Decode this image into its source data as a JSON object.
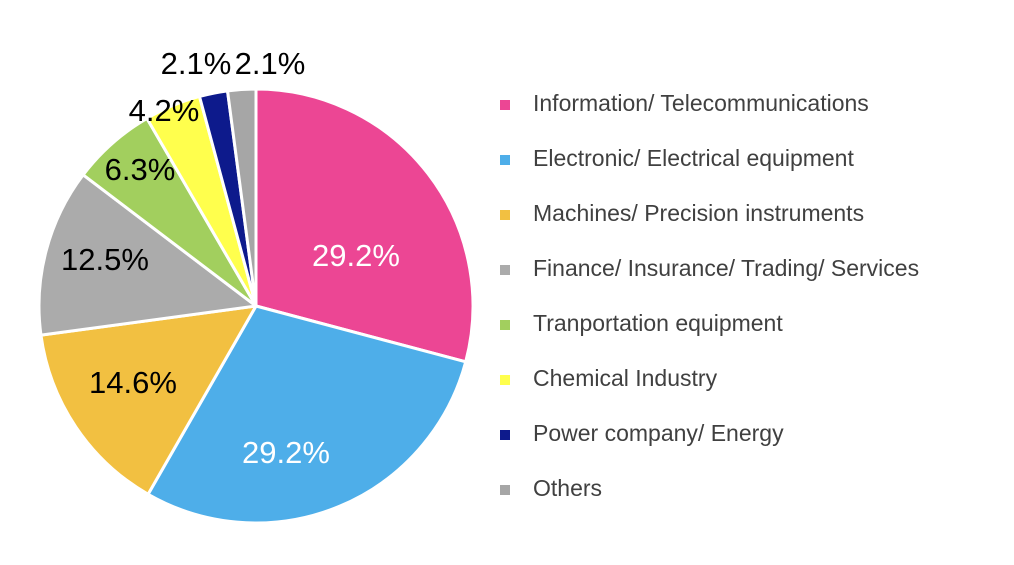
{
  "chart_data": {
    "type": "pie",
    "title": "",
    "slices": [
      {
        "label": "Information/ Telecommunications",
        "value": 29.2,
        "display": "29.2%",
        "color": "#EC4694",
        "label_color": "#FFFFFF"
      },
      {
        "label": "Electronic/ Electrical equipment",
        "value": 29.2,
        "display": "29.2%",
        "color": "#4EAEE9",
        "label_color": "#FFFFFF"
      },
      {
        "label": "Machines/ Precision instruments",
        "value": 14.6,
        "display": "14.6%",
        "color": "#F2C041",
        "label_color": "#000000"
      },
      {
        "label": "Finance/ Insurance/ Trading/ Services",
        "value": 12.5,
        "display": "12.5%",
        "color": "#ABABAB",
        "label_color": "#000000"
      },
      {
        "label": "Tranportation equipment",
        "value": 6.3,
        "display": "6.3%",
        "color": "#A2CF5E",
        "label_color": "#000000"
      },
      {
        "label": "Chemical Industry",
        "value": 4.2,
        "display": "4.2%",
        "color": "#FFFF4D",
        "label_color": "#000000"
      },
      {
        "label": "Power company/ Energy",
        "value": 2.1,
        "display": "2.1%",
        "color": "#0D1A8C",
        "label_color": "#000000"
      },
      {
        "label": "Others",
        "value": 2.1,
        "display": "2.1%",
        "color": "#A6A6A6",
        "label_color": "#000000"
      }
    ],
    "legend_position": "right",
    "start": "top, clockwise"
  }
}
